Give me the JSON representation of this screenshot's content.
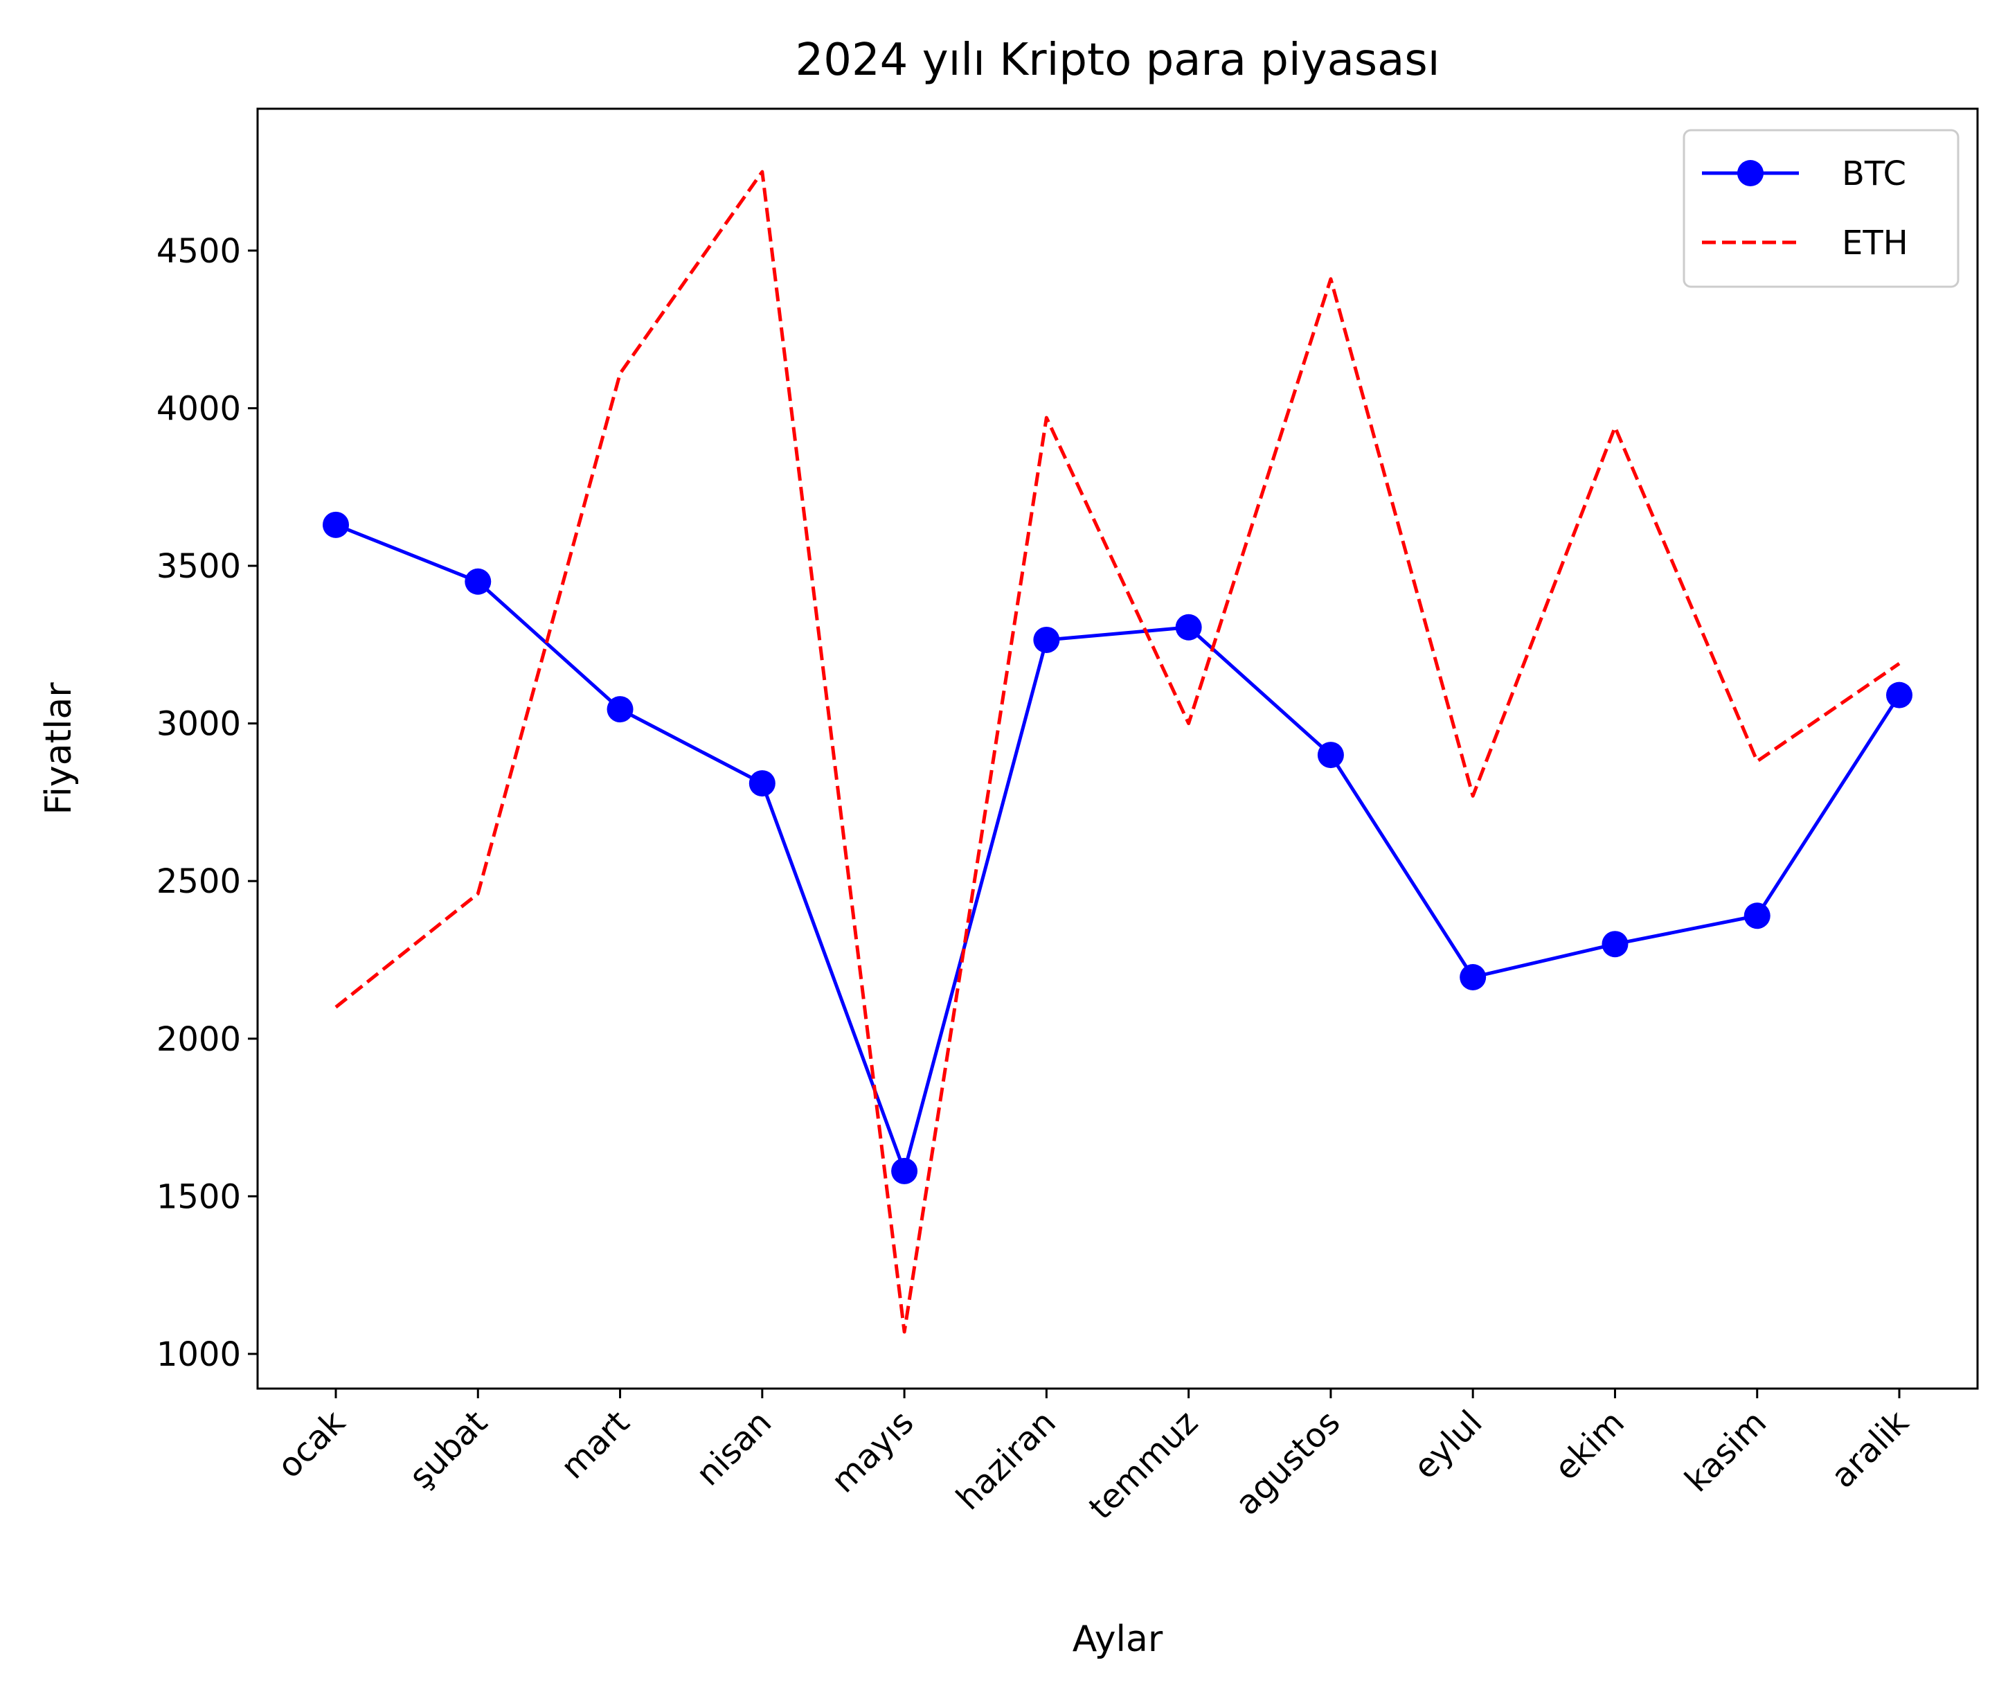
{
  "chart_data": {
    "type": "line",
    "title": "2024 yılı Kripto para piyasası",
    "xlabel": "Aylar",
    "ylabel": "Fiyatlar",
    "categories": [
      "ocak",
      "şubat",
      "mart",
      "nisan",
      "mayıs",
      "haziran",
      "temmuz",
      "agustos",
      "eylul",
      "ekim",
      "kasim",
      "aralik"
    ],
    "ylim": [
      890,
      4950
    ],
    "yticks": [
      1000,
      1500,
      2000,
      2500,
      3000,
      3500,
      4000,
      4500
    ],
    "ytick_labels": [
      "1000",
      "1500",
      "2000",
      "2500",
      "3000",
      "3500",
      "4000",
      "4500"
    ],
    "grid": false,
    "legend_position": "top-right",
    "series": [
      {
        "name": "BTC",
        "color": "#0000ff",
        "style": "solid-with-circle-markers",
        "values": [
          3630,
          3450,
          3045,
          2810,
          1580,
          3265,
          3305,
          2900,
          2195,
          2300,
          2390,
          3090
        ]
      },
      {
        "name": "ETH",
        "color": "#ff0000",
        "style": "dashed",
        "values": [
          2100,
          2460,
          4110,
          4750,
          1070,
          3970,
          3000,
          4410,
          2770,
          3940,
          2880,
          3190
        ]
      }
    ]
  }
}
